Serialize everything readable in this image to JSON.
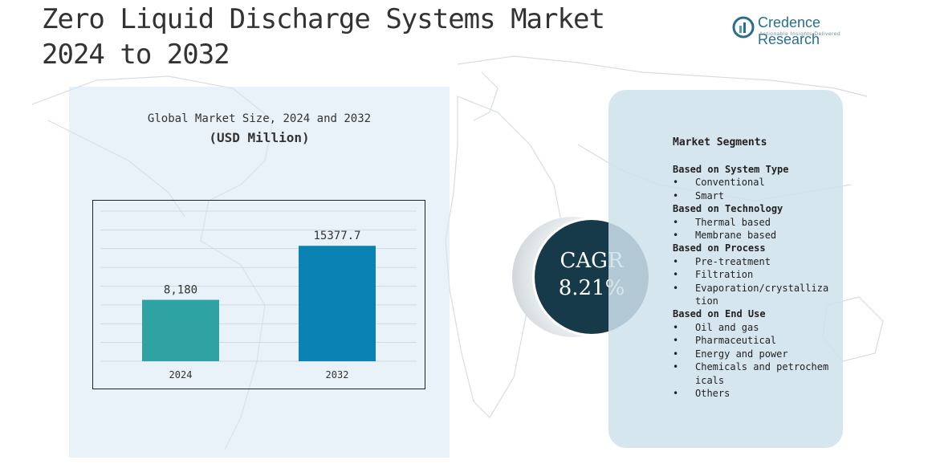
{
  "title": "Zero Liquid Discharge Systems Market\n2024 to 2032",
  "brand": {
    "name": "Credence Research",
    "tagline": "Actionable Insights Delivered"
  },
  "chart_heading": "Global Market Size, 2024 and 2032",
  "chart_subheading": "(USD Million)",
  "chart_data": {
    "type": "bar",
    "categories": [
      "2024",
      "2032"
    ],
    "values": [
      8180,
      15377.7
    ],
    "data_labels": [
      "8,180",
      "15377.7"
    ],
    "colors": [
      "#2fa3a3",
      "#0a82b4"
    ],
    "ylim": [
      0,
      20000
    ],
    "grid": true,
    "title": "",
    "xlabel": "",
    "ylabel": ""
  },
  "cagr": {
    "label": "CAGR",
    "value": "8.21%"
  },
  "segments": {
    "title": "Market Segments",
    "groups": [
      {
        "heading": "Based on System Type",
        "items": [
          "Conventional",
          "Smart"
        ]
      },
      {
        "heading": "Based on Technology",
        "items": [
          "Thermal based",
          "Membrane based"
        ]
      },
      {
        "heading": "Based on Process",
        "items": [
          "Pre-treatment",
          "Filtration",
          "Evaporation/crystallization"
        ]
      },
      {
        "heading": "Based on End Use",
        "items": [
          "Oil and gas",
          "Pharmaceutical",
          "Energy and power",
          "Chemicals and petrochemicals",
          "Others"
        ]
      }
    ]
  },
  "colors": {
    "left_panel": "#d6e8f3",
    "right_panel": "#cee2ec",
    "cagr_circle": "#173a4b"
  }
}
